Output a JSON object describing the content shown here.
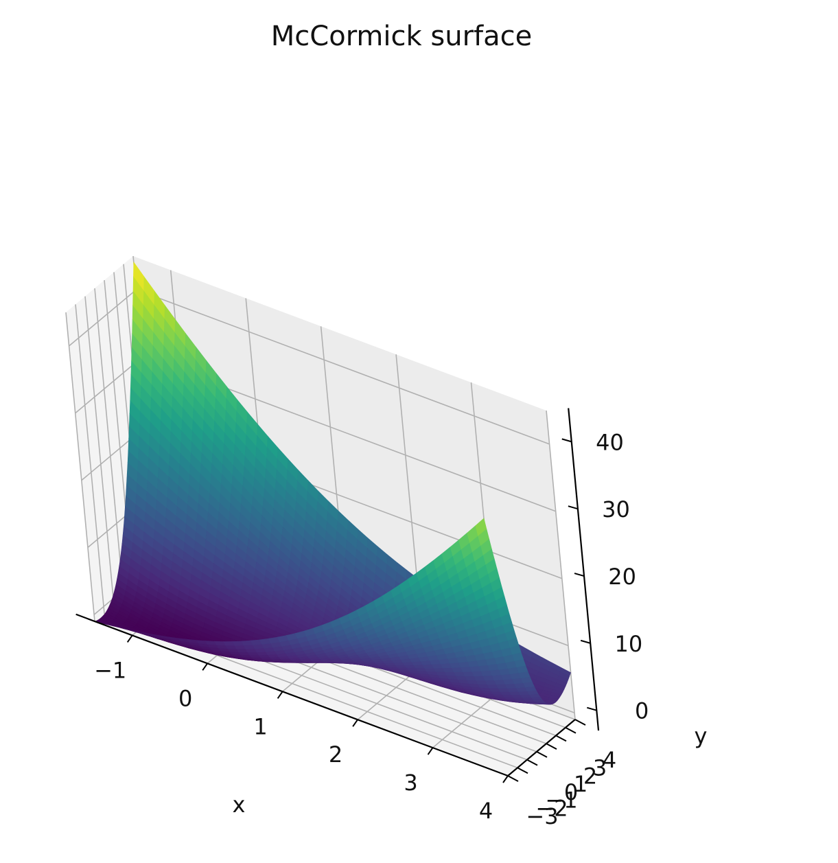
{
  "chart_data": {
    "type": "surface",
    "title": "McCormick surface",
    "function": "f(x, y) = sin(x + y) + (x - y)^2 - 1.5x + 2.5y + 1",
    "colormap": "viridis",
    "xlabel": "x",
    "ylabel": "y",
    "zlabel": "",
    "xlim": [
      -1.5,
      4
    ],
    "ylim": [
      -3,
      4
    ],
    "zlim": [
      -1,
      45
    ],
    "x_ticks": [
      -1,
      0,
      1,
      2,
      3,
      4
    ],
    "y_ticks": [
      -3,
      -2,
      -1,
      0,
      1,
      2,
      3,
      4
    ],
    "z_ticks": [
      0,
      10,
      20,
      30,
      40
    ],
    "x_tick_labels": [
      "−1",
      "0",
      "1",
      "2",
      "3",
      "4"
    ],
    "y_tick_labels": [
      "−3",
      "−2",
      "−1",
      "0",
      "1",
      "2",
      "3",
      "4"
    ],
    "z_tick_labels": [
      "0",
      "10",
      "20",
      "30",
      "40"
    ],
    "grid": true,
    "colors": {
      "pane_light": "#f4f4f4",
      "pane_mid": "#ececec",
      "grid": "#b0b0b0",
      "axis": "#000000"
    }
  }
}
